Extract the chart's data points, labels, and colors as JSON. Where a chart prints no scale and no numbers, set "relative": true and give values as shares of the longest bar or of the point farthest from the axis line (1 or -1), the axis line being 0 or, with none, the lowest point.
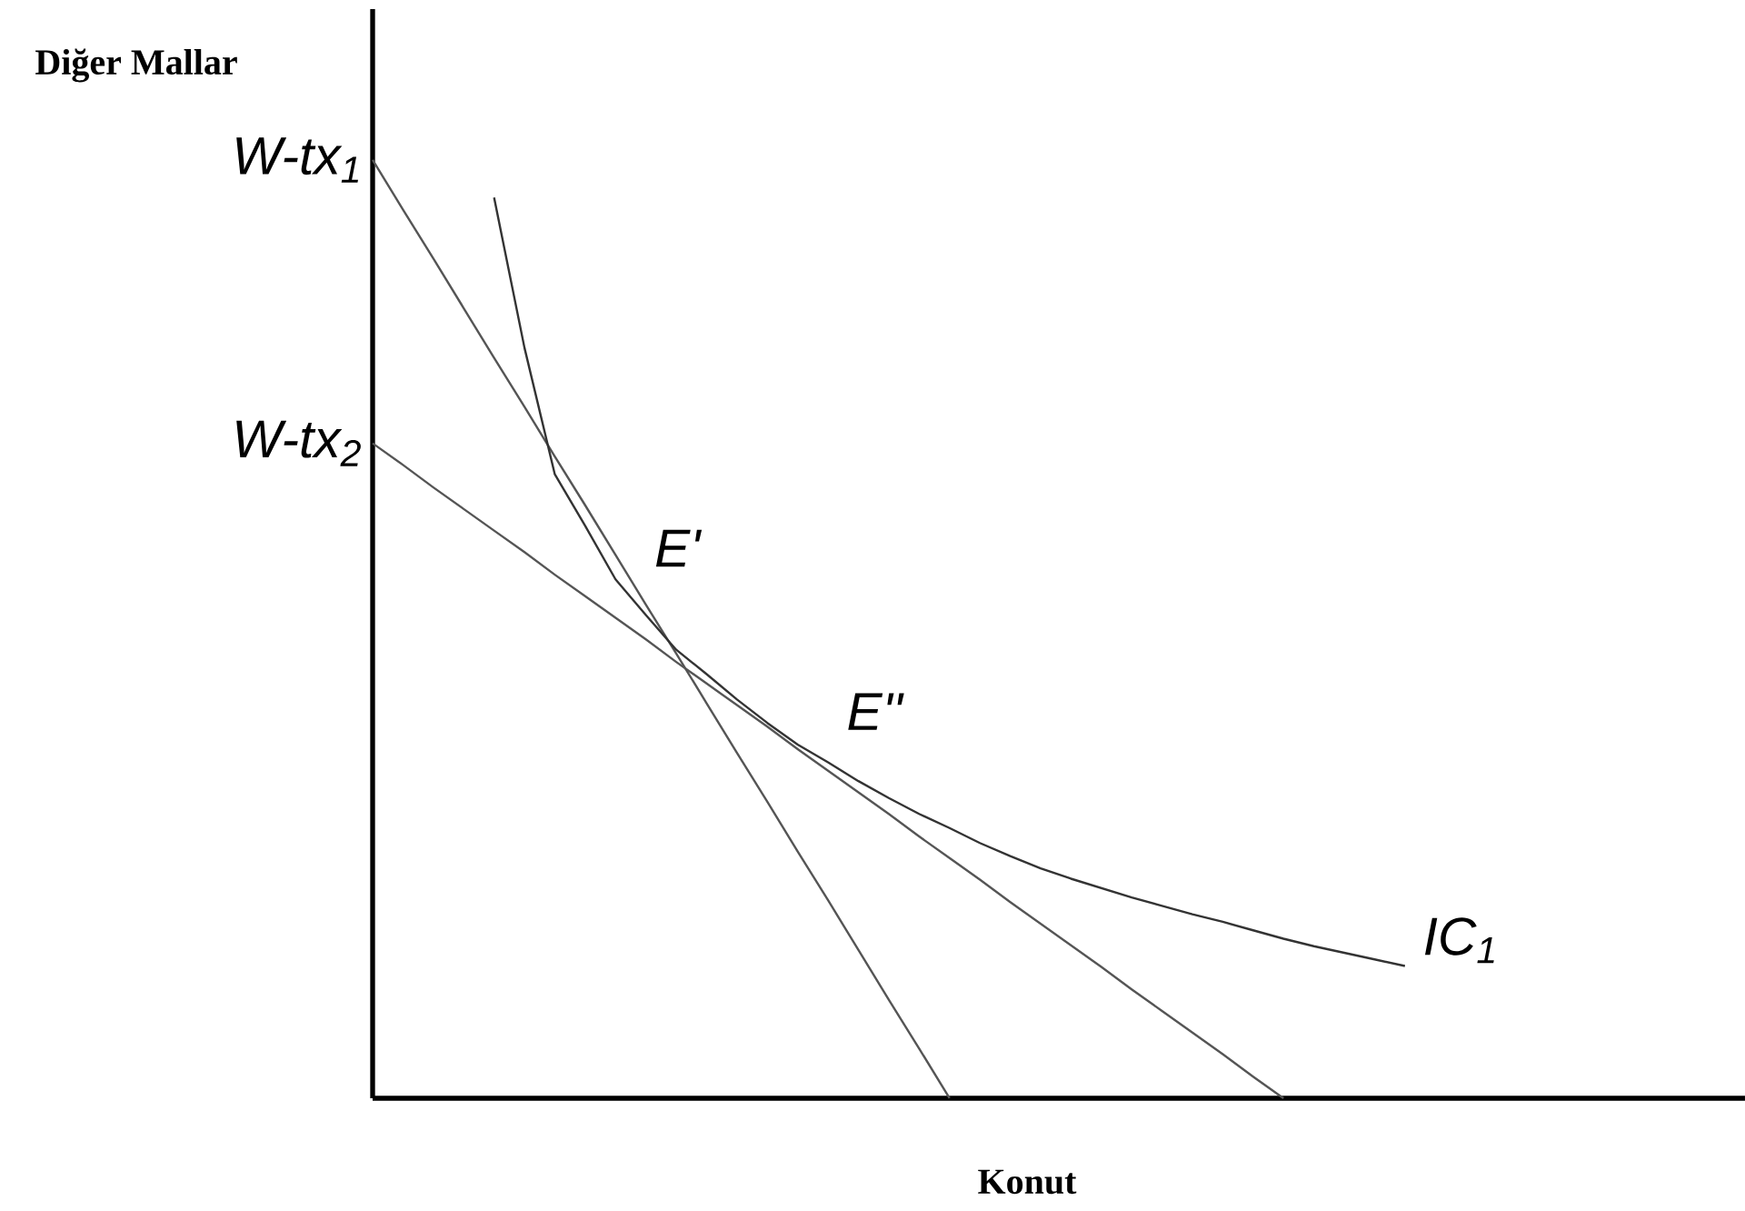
{
  "chart_data": {
    "type": "line",
    "relative": true,
    "xlabel": "Konut",
    "ylabel": "Diğer Mallar",
    "tick_labels": false,
    "marker": "none",
    "line_style": "solid",
    "categories": [
      null,
      null,
      null,
      null,
      null,
      null,
      null,
      null,
      null,
      null,
      null,
      null,
      null,
      null,
      null,
      null,
      null,
      null,
      null,
      null,
      null,
      null,
      null,
      null,
      null,
      null,
      null,
      null,
      null,
      null,
      null,
      null,
      null,
      null,
      null,
      null,
      null,
      null,
      null,
      null,
      null,
      null,
      null,
      null,
      null,
      null
    ],
    "series": [
      {
        "color": "#555555",
        "values": [
          1,
          0.947,
          0.895,
          0.842,
          0.789,
          0.737,
          0.684,
          0.632,
          0.579,
          0.526,
          0.474,
          0.421,
          0.368,
          0.316,
          0.263,
          0.211,
          0.158,
          0.105,
          0.053,
          0,
          null,
          null,
          null,
          null,
          null,
          null,
          null,
          null,
          null,
          null,
          null,
          null,
          null,
          null,
          null,
          null,
          null,
          null,
          null,
          null,
          null,
          null,
          null,
          null,
          null,
          null
        ]
      },
      {
        "color": "#555555",
        "values": [
          0.698,
          0.675,
          0.651,
          0.628,
          0.605,
          0.582,
          0.558,
          0.535,
          0.512,
          0.489,
          0.465,
          0.442,
          0.419,
          0.396,
          0.372,
          0.349,
          0.326,
          0.303,
          0.279,
          0.256,
          0.233,
          0.209,
          0.186,
          0.163,
          0.14,
          0.116,
          0.093,
          0.07,
          0.047,
          0.023,
          0,
          null,
          null,
          null,
          null,
          null,
          null,
          null,
          null,
          null,
          null,
          null,
          null,
          null,
          null,
          null
        ]
      },
      {
        "color": "#333333",
        "values": [
          null,
          null,
          null,
          null,
          0.96,
          0.8,
          0.665,
          0.61,
          0.553,
          0.515,
          0.478,
          0.452,
          0.425,
          0.4,
          0.377,
          0.358,
          0.338,
          0.32,
          0.303,
          0.288,
          0.272,
          0.258,
          0.245,
          0.234,
          0.224,
          0.214,
          0.205,
          0.196,
          0.188,
          0.179,
          0.17,
          0.162,
          0.155,
          0.148,
          0.141,
          null,
          null,
          null,
          null,
          null,
          null,
          null,
          null,
          null,
          null,
          null
        ]
      }
    ],
    "annotations": [
      "W-tx$_{1}$",
      "W-tx$_{2}$",
      "E'",
      "E''",
      "IC$_{1}$"
    ]
  }
}
